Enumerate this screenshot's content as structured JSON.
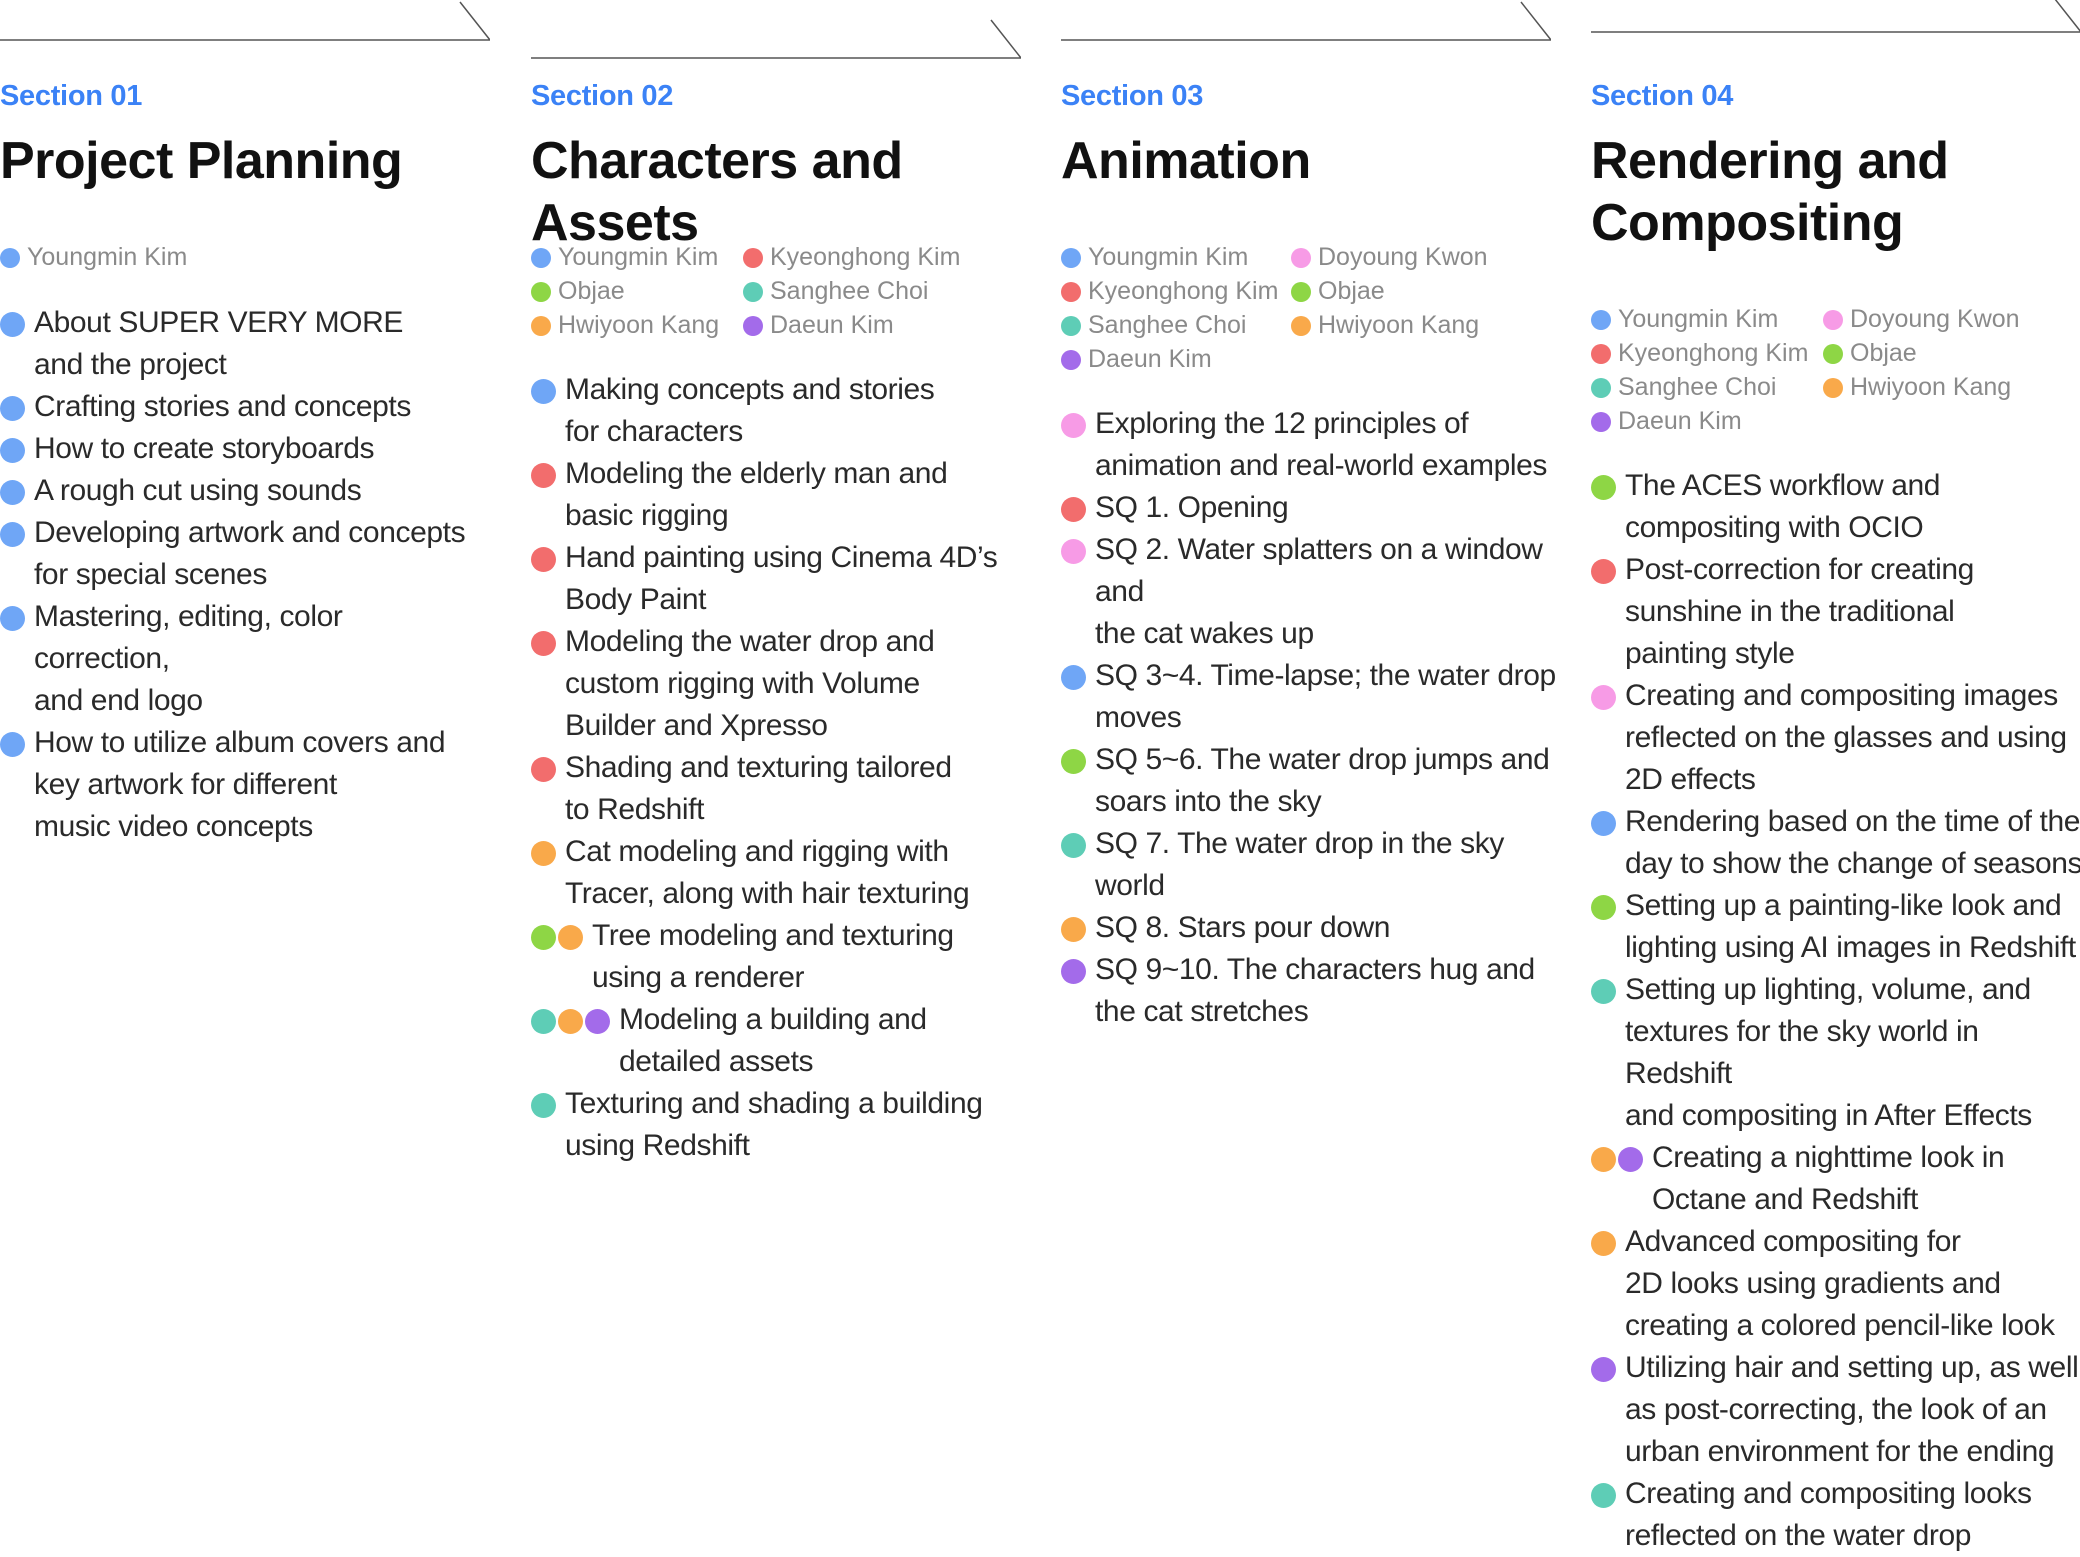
{
  "colors": {
    "blue": "#6FA6F6",
    "red": "#F26D6D",
    "green": "#8ED645",
    "teal": "#5ECDB6",
    "orange": "#F9A94A",
    "purple": "#A36BEA",
    "pink": "#F79BE6",
    "accent": "#3B82F6"
  },
  "sections": [
    {
      "label": "Section 01",
      "title": "Project Planning",
      "members": [
        {
          "name": "Youngmin Kim",
          "color": "blue"
        }
      ],
      "topics": [
        {
          "text": "About SUPER VERY MORE\nand the project",
          "colors": [
            "blue"
          ]
        },
        {
          "text": "Crafting stories and concepts",
          "colors": [
            "blue"
          ]
        },
        {
          "text": "How to create storyboards",
          "colors": [
            "blue"
          ]
        },
        {
          "text": "A rough cut using sounds",
          "colors": [
            "blue"
          ]
        },
        {
          "text": "Developing artwork and concepts\nfor special scenes",
          "colors": [
            "blue"
          ]
        },
        {
          "text": "Mastering, editing, color correction,\nand end logo",
          "colors": [
            "blue"
          ]
        },
        {
          "text": "How to utilize album covers and\nkey artwork for different\nmusic video concepts",
          "colors": [
            "blue"
          ]
        }
      ]
    },
    {
      "label": "Section 02",
      "title": "Characters and Assets",
      "members": [
        {
          "name": "Youngmin Kim",
          "color": "blue"
        },
        {
          "name": "Kyeonghong Kim",
          "color": "red"
        },
        {
          "name": "Objae",
          "color": "green"
        },
        {
          "name": "Sanghee Choi",
          "color": "teal"
        },
        {
          "name": "Hwiyoon Kang",
          "color": "orange"
        },
        {
          "name": "Daeun Kim",
          "color": "purple"
        }
      ],
      "topics": [
        {
          "text": "Making concepts and stories\nfor characters",
          "colors": [
            "blue"
          ]
        },
        {
          "text": "Modeling the elderly man and\nbasic rigging",
          "colors": [
            "red"
          ]
        },
        {
          "text": "Hand painting using Cinema 4D’s\nBody Paint",
          "colors": [
            "red"
          ]
        },
        {
          "text": "Modeling the water drop and\ncustom rigging with Volume\nBuilder and Xpresso",
          "colors": [
            "red"
          ]
        },
        {
          "text": "Shading and texturing tailored\nto Redshift",
          "colors": [
            "red"
          ]
        },
        {
          "text": "Cat modeling and rigging with\nTracer, along with hair texturing",
          "colors": [
            "orange"
          ]
        },
        {
          "text": "Tree modeling and texturing\nusing a renderer",
          "colors": [
            "green",
            "orange"
          ]
        },
        {
          "text": "Modeling a building and\ndetailed assets",
          "colors": [
            "teal",
            "orange",
            "purple"
          ]
        },
        {
          "text": "Texturing and shading a building\nusing Redshift",
          "colors": [
            "teal"
          ]
        }
      ]
    },
    {
      "label": "Section 03",
      "title": "Animation",
      "members": [
        {
          "name": "Youngmin Kim",
          "color": "blue"
        },
        {
          "name": "Doyoung Kwon",
          "color": "pink"
        },
        {
          "name": "Kyeonghong Kim",
          "color": "red"
        },
        {
          "name": "Objae",
          "color": "green"
        },
        {
          "name": "Sanghee Choi",
          "color": "teal"
        },
        {
          "name": "Hwiyoon Kang",
          "color": "orange"
        },
        {
          "name": "Daeun Kim",
          "color": "purple"
        }
      ],
      "topics": [
        {
          "text": "Exploring the 12 principles of\nanimation and real-world examples",
          "colors": [
            "pink"
          ]
        },
        {
          "text": "SQ 1. Opening",
          "colors": [
            "red"
          ]
        },
        {
          "text": "SQ 2. Water splatters on a window and\nthe cat wakes up",
          "colors": [
            "pink"
          ]
        },
        {
          "text": "SQ 3~4. Time-lapse; the water drop\nmoves",
          "colors": [
            "blue"
          ]
        },
        {
          "text": "SQ 5~6. The water drop jumps and\nsoars into the sky",
          "colors": [
            "green"
          ]
        },
        {
          "text": "SQ 7. The water drop in the sky world",
          "colors": [
            "teal"
          ]
        },
        {
          "text": "SQ 8. Stars pour down",
          "colors": [
            "orange"
          ]
        },
        {
          "text": "SQ 9~10. The characters hug and\nthe cat stretches",
          "colors": [
            "purple"
          ]
        }
      ]
    },
    {
      "label": "Section 04",
      "title": "Rendering and\nCompositing",
      "members": [
        {
          "name": "Youngmin Kim",
          "color": "blue"
        },
        {
          "name": "Doyoung Kwon",
          "color": "pink"
        },
        {
          "name": "Kyeonghong Kim",
          "color": "red"
        },
        {
          "name": "Objae",
          "color": "green"
        },
        {
          "name": "Sanghee Choi",
          "color": "teal"
        },
        {
          "name": "Hwiyoon Kang",
          "color": "orange"
        },
        {
          "name": "Daeun Kim",
          "color": "purple"
        }
      ],
      "topics": [
        {
          "text": "The ACES workflow and\ncompositing with OCIO",
          "colors": [
            "green"
          ]
        },
        {
          "text": "Post-correction for creating\nsunshine in the traditional\npainting style",
          "colors": [
            "red"
          ]
        },
        {
          "text": "Creating and compositing images\nreflected on the glasses and using\n2D effects",
          "colors": [
            "pink"
          ]
        },
        {
          "text": "Rendering based on the time of the\nday to show the change of seasons",
          "colors": [
            "blue"
          ]
        },
        {
          "text": "Setting up a painting-like look and\nlighting using AI images in Redshift",
          "colors": [
            "green"
          ]
        },
        {
          "text": "Setting up lighting, volume, and\ntextures for the sky world in Redshift\nand compositing in After Effects",
          "colors": [
            "teal"
          ]
        },
        {
          "text": "Creating a nighttime look in\nOctane and Redshift",
          "colors": [
            "orange",
            "purple"
          ]
        },
        {
          "text": "Advanced compositing for\n2D looks using gradients and\ncreating a colored pencil-like look",
          "colors": [
            "orange"
          ]
        },
        {
          "text": "Utilizing hair and setting up, as well\nas post-correcting, the look of an\nurban environment for the ending",
          "colors": [
            "purple"
          ]
        },
        {
          "text": "Creating and compositing looks\nreflected on the water drop",
          "colors": [
            "teal"
          ]
        }
      ]
    }
  ]
}
